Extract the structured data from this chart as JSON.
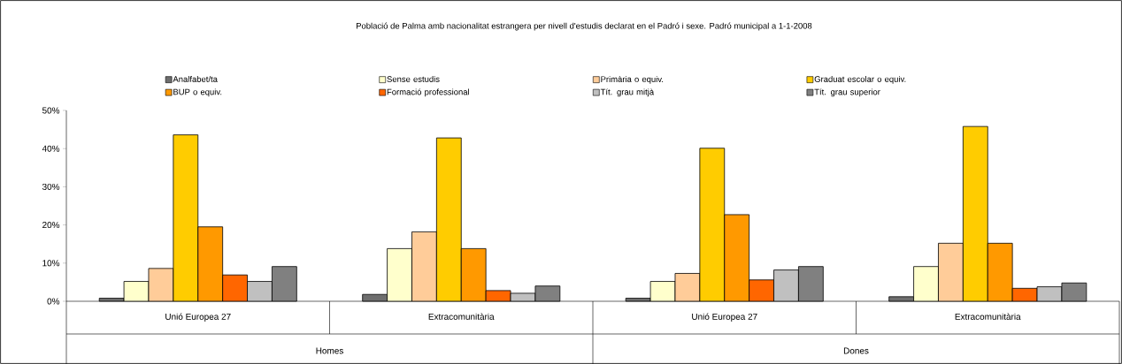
{
  "chart_data": {
    "type": "bar",
    "title": "Població de Palma amb nacionalitat estrangera per nivell d'estudis declarat en el Padró i sexe. Padró municipal a 1-1-2008",
    "categories": [
      "Unió Europea 27",
      "Extracomunitària",
      "Unió Europea 27",
      "Extracomunitària"
    ],
    "annotations": [
      "Homes",
      "Dones"
    ],
    "series": [
      {
        "name": "Analfabet/ta",
        "color": "#6e6e6e",
        "values": [
          0.8,
          1.8,
          0.8,
          1.2
        ]
      },
      {
        "name": "Sense estudis",
        "color": "#ffffcc",
        "values": [
          5.2,
          13.8,
          5.2,
          9.1
        ]
      },
      {
        "name": "Primària o equiv.",
        "color": "#ffcc99",
        "values": [
          8.6,
          18.2,
          7.3,
          15.2
        ]
      },
      {
        "name": "Graduat escolar o equiv.",
        "color": "#ffcc00",
        "values": [
          43.6,
          42.8,
          40.1,
          45.8
        ]
      },
      {
        "name": "BUP o equiv.",
        "color": "#ff9900",
        "values": [
          19.5,
          13.8,
          22.7,
          15.2
        ]
      },
      {
        "name": "Formació professional",
        "color": "#ff6600",
        "values": [
          6.9,
          2.8,
          5.6,
          3.4
        ]
      },
      {
        "name": "Tít. grau mitjà",
        "color": "#c0c0c0",
        "values": [
          5.2,
          2.1,
          8.2,
          3.8
        ]
      },
      {
        "name": "Tít. grau superior",
        "color": "#808080",
        "values": [
          9.1,
          4.0,
          9.1,
          4.8
        ]
      }
    ],
    "ylim": [
      0,
      50
    ],
    "yticks": [
      {
        "value": 0,
        "label": "0%"
      },
      {
        "value": 10,
        "label": "10%"
      },
      {
        "value": 20,
        "label": "20%"
      },
      {
        "value": 30,
        "label": "30%"
      },
      {
        "value": 40,
        "label": "40%"
      },
      {
        "value": 50,
        "label": "50%"
      }
    ],
    "grid": false,
    "legend": "top"
  }
}
